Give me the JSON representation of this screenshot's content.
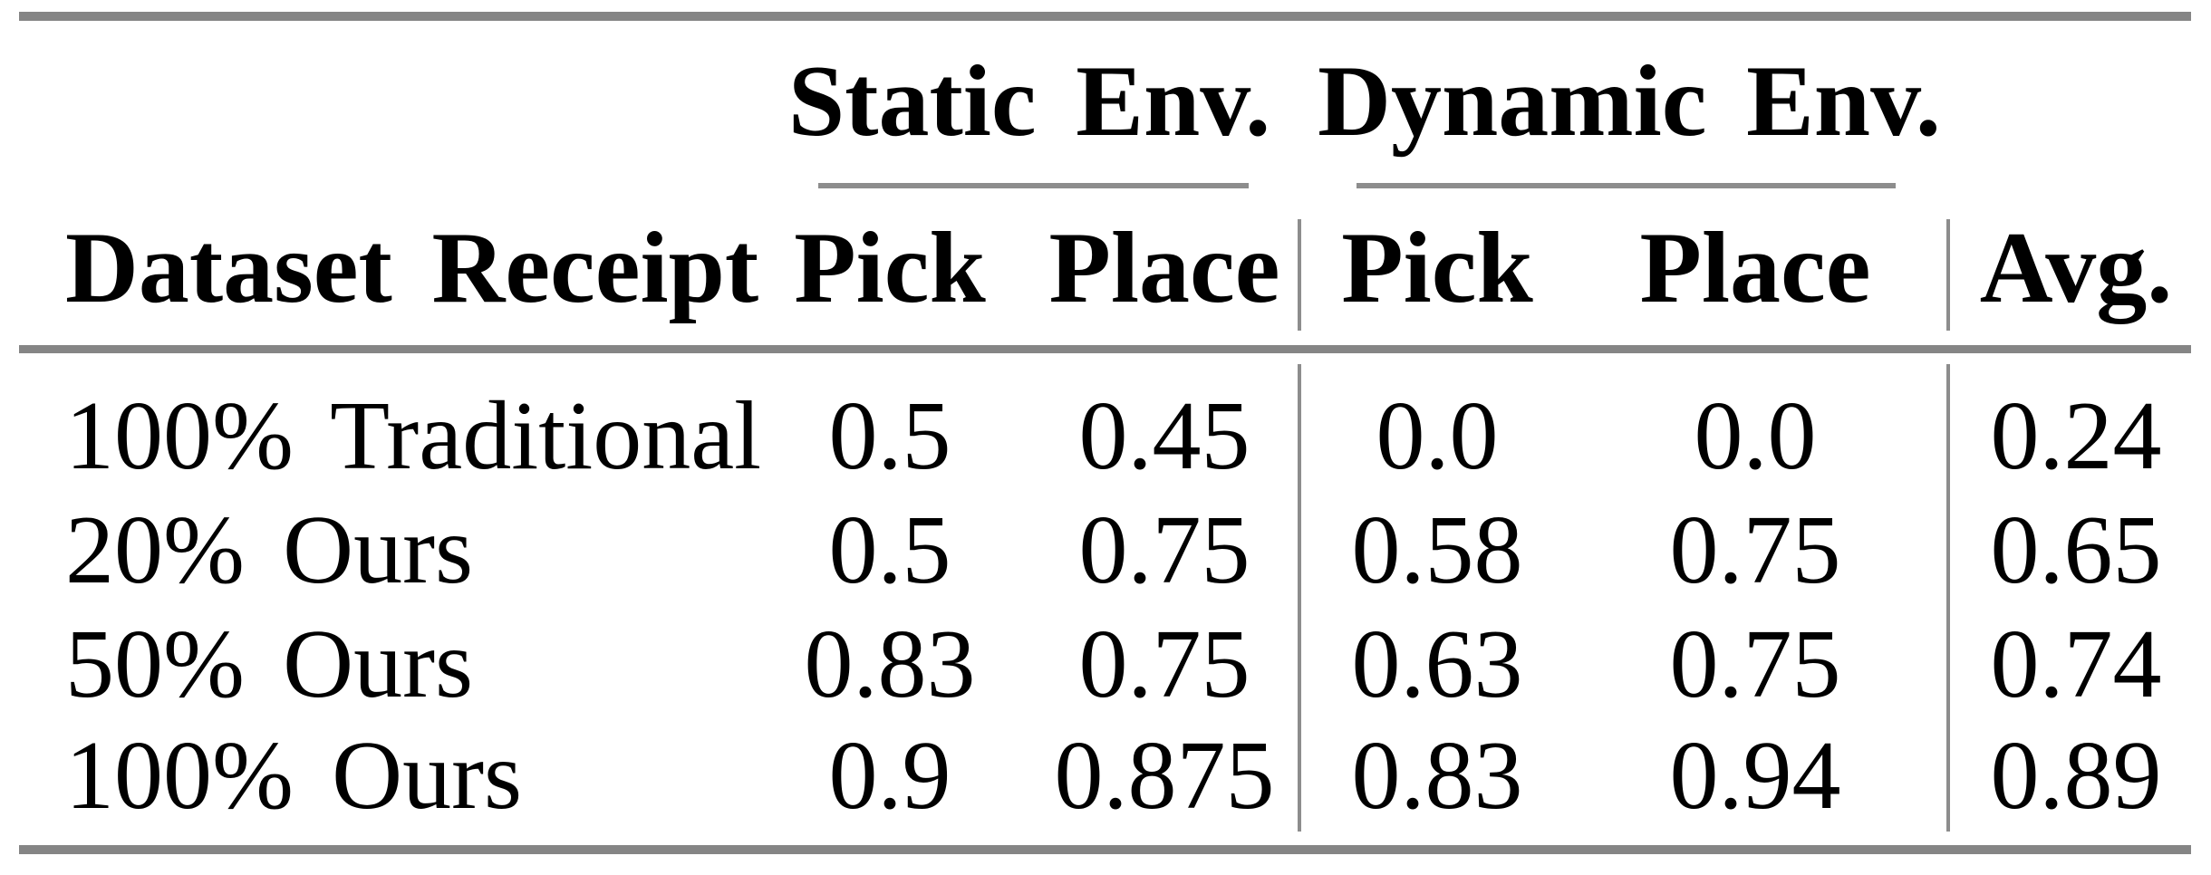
{
  "table": {
    "header": {
      "row_label_column": "Dataset Receipt",
      "groups": [
        {
          "label": "Static Env.",
          "columns": [
            "Pick",
            "Place"
          ]
        },
        {
          "label": "Dynamic Env.",
          "columns": [
            "Pick",
            "Place"
          ]
        }
      ],
      "avg_column": "Avg."
    },
    "rows": [
      {
        "label": "100% Traditional",
        "values": [
          "0.5",
          "0.45",
          "0.0",
          "0.0",
          "0.24"
        ]
      },
      {
        "label": "20% Ours",
        "values": [
          "0.5",
          "0.75",
          "0.58",
          "0.75",
          "0.65"
        ]
      },
      {
        "label": "50% Ours",
        "values": [
          "0.83",
          "0.75",
          "0.63",
          "0.75",
          "0.74"
        ]
      },
      {
        "label": "100% Ours",
        "values": [
          "0.9",
          "0.875",
          "0.83",
          "0.94",
          "0.89"
        ]
      }
    ],
    "colors": {
      "thick_rule": "#858585",
      "thin_rule": "#8d8d8d",
      "text": "#000000",
      "background": "#ffffff"
    }
  },
  "chart_data": {
    "type": "table",
    "columns": [
      "Dataset Receipt",
      "Static Env. Pick",
      "Static Env. Place",
      "Dynamic Env. Pick",
      "Dynamic Env. Place",
      "Avg."
    ],
    "rows": [
      [
        "100% Traditional",
        0.5,
        0.45,
        0.0,
        0.0,
        0.24
      ],
      [
        "20% Ours",
        0.5,
        0.75,
        0.58,
        0.75,
        0.65
      ],
      [
        "50% Ours",
        0.83,
        0.75,
        0.63,
        0.75,
        0.74
      ],
      [
        "100% Ours",
        0.9,
        0.875,
        0.83,
        0.94,
        0.89
      ]
    ]
  }
}
